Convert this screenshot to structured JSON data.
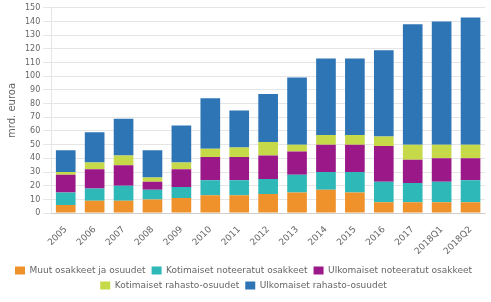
{
  "chart_data": {
    "type": "bar",
    "stacked": true,
    "categories": [
      "2005",
      "2006",
      "2007",
      "2008",
      "2009",
      "2010",
      "2011",
      "2012",
      "2013",
      "2014",
      "2015",
      "2016",
      "2017",
      "2018Q1",
      "2018Q2"
    ],
    "series": [
      {
        "name": "Muut osakkeet ja osuudet",
        "color": "#F0922B",
        "values": [
          6,
          9,
          9,
          10,
          11,
          13,
          13,
          14,
          15,
          17,
          15,
          8,
          8,
          8,
          8
        ]
      },
      {
        "name": "Kotimaiset noteeratut osakkeet",
        "color": "#2EB8B8",
        "values": [
          9,
          9,
          11,
          7,
          8,
          11,
          11,
          11,
          13,
          13,
          15,
          15,
          14,
          15,
          16
        ]
      },
      {
        "name": "Ulkomaiset noteeratut osakkeet",
        "color": "#9B1889",
        "values": [
          13,
          14,
          15,
          6,
          13,
          17,
          17,
          17,
          17,
          20,
          20,
          26,
          17,
          17,
          16
        ]
      },
      {
        "name": "Kotimaiset rahasto-osuudet",
        "color": "#C5D949",
        "values": [
          2,
          5,
          7,
          3,
          5,
          6,
          7,
          10,
          5,
          7,
          7,
          7,
          11,
          10,
          10
        ]
      },
      {
        "name": "Ulkomaiset rahasto-osuudet",
        "color": "#2E75B6",
        "values": [
          16,
          22,
          27,
          20,
          27,
          37,
          27,
          35,
          49,
          56,
          56,
          63,
          88,
          90,
          93
        ]
      }
    ],
    "ylabel": "mrd. euroa",
    "ylim": [
      0,
      150
    ],
    "yticks": [
      0,
      10,
      20,
      30,
      40,
      50,
      60,
      70,
      80,
      90,
      100,
      110,
      120,
      130,
      140,
      150
    ],
    "grid": true,
    "legend": "bottom"
  }
}
